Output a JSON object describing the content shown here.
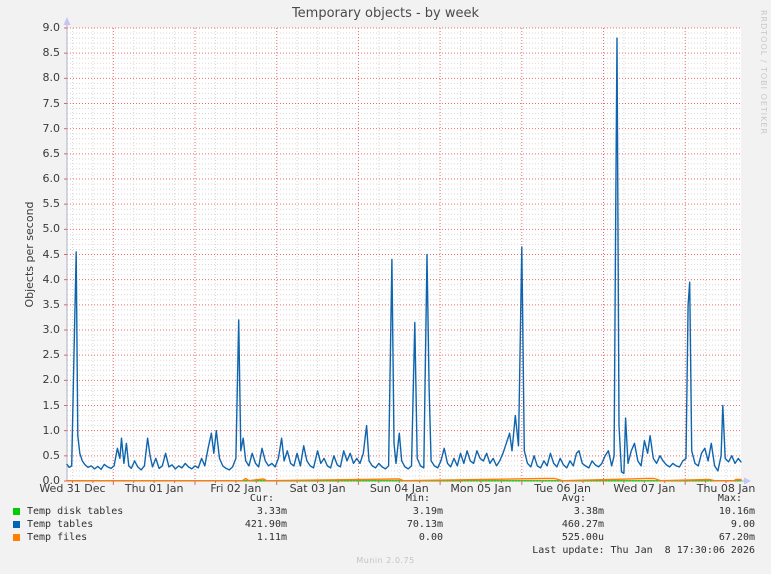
{
  "title": "Temporary objects - by week",
  "watermark": "RRDTOOL / TOBI OETIKER",
  "footer": {
    "munin_version": "Munin 2.0.75"
  },
  "colors": {
    "background": "#f2f2f2",
    "plot_background": "#ffffff",
    "grid_major": "#ee6a6a",
    "grid_minor": "#d8d8d8",
    "axis_line": "#b0b0c8",
    "axis_arrow": "#c3c6f2",
    "tick": "#d46a6a",
    "temp_disk_tables": "#00cc00",
    "temp_tables": "#0e65ae",
    "temp_files": "#ff7f00"
  },
  "chart_data": {
    "type": "line",
    "title": "Temporary objects - by week",
    "xlabel": "",
    "ylabel": "Objects per second",
    "ylim": [
      0,
      9.0
    ],
    "ytick_step": 0.5,
    "grid": {
      "enabled": true,
      "major_color": "#ee6a6a",
      "minor_color": "#d8d8d8"
    },
    "legend_position": "bottom",
    "y_tick_labels": [
      "0.0",
      "0.5",
      "1.0",
      "1.5",
      "2.0",
      "2.5",
      "3.0",
      "3.5",
      "4.0",
      "4.5",
      "5.0",
      "5.5",
      "6.0",
      "6.5",
      "7.0",
      "7.5",
      "8.0",
      "8.5",
      "9.0"
    ],
    "x_tick_labels": [
      "Wed 31 Dec",
      "Thu 01 Jan",
      "Fri 02 Jan",
      "Sat 03 Jan",
      "Sun 04 Jan",
      "Mon 05 Jan",
      "Tue 06 Jan",
      "Wed 07 Jan",
      "Thu 08 Jan"
    ],
    "x_axis": {
      "unit": "days since Wed 31 Dec 00:00",
      "start_day": 0.433,
      "end_day": 8.683,
      "major_grid_days": [
        1,
        2,
        3,
        4,
        5,
        6,
        7,
        8
      ],
      "minor_grid_step_days": 0.25,
      "label_days": [
        0.5,
        1.5,
        2.5,
        3.5,
        4.5,
        5.5,
        6.5,
        7.5,
        8.5
      ]
    },
    "series": [
      {
        "name": "Temp disk tables",
        "color": "#00cc00",
        "points": [
          [
            0.433,
            0.004
          ],
          [
            8.683,
            0.004
          ]
        ]
      },
      {
        "name": "Temp tables",
        "color": "#0e65ae",
        "points": [
          [
            0.433,
            0.33
          ],
          [
            0.46,
            0.27
          ],
          [
            0.49,
            0.3
          ],
          [
            0.515,
            2.25
          ],
          [
            0.545,
            4.55
          ],
          [
            0.565,
            0.9
          ],
          [
            0.59,
            0.55
          ],
          [
            0.62,
            0.4
          ],
          [
            0.65,
            0.33
          ],
          [
            0.69,
            0.27
          ],
          [
            0.73,
            0.3
          ],
          [
            0.77,
            0.24
          ],
          [
            0.81,
            0.29
          ],
          [
            0.85,
            0.23
          ],
          [
            0.89,
            0.33
          ],
          [
            0.93,
            0.28
          ],
          [
            0.97,
            0.25
          ],
          [
            1.01,
            0.3
          ],
          [
            1.05,
            0.65
          ],
          [
            1.08,
            0.45
          ],
          [
            1.1,
            0.85
          ],
          [
            1.13,
            0.35
          ],
          [
            1.16,
            0.75
          ],
          [
            1.19,
            0.3
          ],
          [
            1.22,
            0.25
          ],
          [
            1.26,
            0.4
          ],
          [
            1.3,
            0.28
          ],
          [
            1.34,
            0.22
          ],
          [
            1.38,
            0.3
          ],
          [
            1.42,
            0.85
          ],
          [
            1.45,
            0.5
          ],
          [
            1.48,
            0.28
          ],
          [
            1.52,
            0.45
          ],
          [
            1.56,
            0.25
          ],
          [
            1.6,
            0.3
          ],
          [
            1.64,
            0.55
          ],
          [
            1.68,
            0.28
          ],
          [
            1.72,
            0.32
          ],
          [
            1.76,
            0.24
          ],
          [
            1.8,
            0.3
          ],
          [
            1.84,
            0.26
          ],
          [
            1.88,
            0.35
          ],
          [
            1.92,
            0.28
          ],
          [
            1.96,
            0.24
          ],
          [
            2.0,
            0.3
          ],
          [
            2.04,
            0.26
          ],
          [
            2.08,
            0.45
          ],
          [
            2.12,
            0.3
          ],
          [
            2.16,
            0.65
          ],
          [
            2.2,
            0.95
          ],
          [
            2.23,
            0.55
          ],
          [
            2.26,
            1.0
          ],
          [
            2.3,
            0.45
          ],
          [
            2.34,
            0.3
          ],
          [
            2.38,
            0.25
          ],
          [
            2.42,
            0.22
          ],
          [
            2.46,
            0.28
          ],
          [
            2.5,
            0.45
          ],
          [
            2.535,
            3.2
          ],
          [
            2.56,
            0.6
          ],
          [
            2.59,
            0.85
          ],
          [
            2.62,
            0.4
          ],
          [
            2.66,
            0.3
          ],
          [
            2.7,
            0.55
          ],
          [
            2.74,
            0.35
          ],
          [
            2.78,
            0.28
          ],
          [
            2.82,
            0.65
          ],
          [
            2.86,
            0.4
          ],
          [
            2.9,
            0.3
          ],
          [
            2.94,
            0.35
          ],
          [
            2.98,
            0.28
          ],
          [
            3.02,
            0.45
          ],
          [
            3.06,
            0.85
          ],
          [
            3.09,
            0.4
          ],
          [
            3.13,
            0.6
          ],
          [
            3.17,
            0.35
          ],
          [
            3.21,
            0.3
          ],
          [
            3.25,
            0.55
          ],
          [
            3.29,
            0.3
          ],
          [
            3.33,
            0.7
          ],
          [
            3.37,
            0.4
          ],
          [
            3.41,
            0.3
          ],
          [
            3.45,
            0.26
          ],
          [
            3.5,
            0.6
          ],
          [
            3.54,
            0.35
          ],
          [
            3.58,
            0.45
          ],
          [
            3.62,
            0.3
          ],
          [
            3.66,
            0.26
          ],
          [
            3.7,
            0.5
          ],
          [
            3.74,
            0.32
          ],
          [
            3.78,
            0.28
          ],
          [
            3.82,
            0.6
          ],
          [
            3.86,
            0.4
          ],
          [
            3.9,
            0.55
          ],
          [
            3.94,
            0.35
          ],
          [
            3.98,
            0.45
          ],
          [
            4.02,
            0.35
          ],
          [
            4.06,
            0.55
          ],
          [
            4.1,
            1.1
          ],
          [
            4.13,
            0.4
          ],
          [
            4.17,
            0.3
          ],
          [
            4.21,
            0.26
          ],
          [
            4.25,
            0.35
          ],
          [
            4.29,
            0.28
          ],
          [
            4.33,
            0.24
          ],
          [
            4.37,
            0.3
          ],
          [
            4.41,
            4.4
          ],
          [
            4.435,
            0.75
          ],
          [
            4.46,
            0.35
          ],
          [
            4.5,
            0.95
          ],
          [
            4.53,
            0.4
          ],
          [
            4.57,
            0.28
          ],
          [
            4.61,
            0.24
          ],
          [
            4.65,
            0.3
          ],
          [
            4.69,
            3.15
          ],
          [
            4.72,
            0.45
          ],
          [
            4.76,
            0.3
          ],
          [
            4.8,
            0.26
          ],
          [
            4.84,
            4.5
          ],
          [
            4.865,
            1.85
          ],
          [
            4.89,
            0.4
          ],
          [
            4.93,
            0.3
          ],
          [
            4.97,
            0.26
          ],
          [
            5.01,
            0.4
          ],
          [
            5.05,
            0.65
          ],
          [
            5.09,
            0.35
          ],
          [
            5.13,
            0.28
          ],
          [
            5.17,
            0.45
          ],
          [
            5.21,
            0.3
          ],
          [
            5.25,
            0.55
          ],
          [
            5.29,
            0.35
          ],
          [
            5.33,
            0.6
          ],
          [
            5.37,
            0.4
          ],
          [
            5.41,
            0.35
          ],
          [
            5.45,
            0.6
          ],
          [
            5.49,
            0.45
          ],
          [
            5.53,
            0.4
          ],
          [
            5.57,
            0.55
          ],
          [
            5.61,
            0.35
          ],
          [
            5.65,
            0.45
          ],
          [
            5.69,
            0.3
          ],
          [
            5.73,
            0.4
          ],
          [
            5.77,
            0.55
          ],
          [
            5.81,
            0.75
          ],
          [
            5.85,
            0.95
          ],
          [
            5.88,
            0.6
          ],
          [
            5.92,
            1.3
          ],
          [
            5.96,
            0.7
          ],
          [
            6.0,
            4.65
          ],
          [
            6.03,
            0.6
          ],
          [
            6.07,
            0.35
          ],
          [
            6.11,
            0.28
          ],
          [
            6.15,
            0.5
          ],
          [
            6.19,
            0.3
          ],
          [
            6.23,
            0.26
          ],
          [
            6.27,
            0.4
          ],
          [
            6.31,
            0.3
          ],
          [
            6.35,
            0.55
          ],
          [
            6.39,
            0.35
          ],
          [
            6.43,
            0.28
          ],
          [
            6.47,
            0.45
          ],
          [
            6.51,
            0.32
          ],
          [
            6.55,
            0.26
          ],
          [
            6.59,
            0.4
          ],
          [
            6.63,
            0.3
          ],
          [
            6.67,
            0.55
          ],
          [
            6.7,
            0.6
          ],
          [
            6.74,
            0.35
          ],
          [
            6.78,
            0.3
          ],
          [
            6.82,
            0.26
          ],
          [
            6.86,
            0.4
          ],
          [
            6.9,
            0.32
          ],
          [
            6.94,
            0.28
          ],
          [
            6.98,
            0.35
          ],
          [
            7.02,
            0.5
          ],
          [
            7.06,
            0.6
          ],
          [
            7.1,
            0.3
          ],
          [
            7.13,
            0.5
          ],
          [
            7.15,
            5.6
          ],
          [
            7.165,
            8.8
          ],
          [
            7.19,
            1.1
          ],
          [
            7.22,
            0.18
          ],
          [
            7.25,
            0.15
          ],
          [
            7.27,
            1.25
          ],
          [
            7.3,
            0.35
          ],
          [
            7.34,
            0.6
          ],
          [
            7.38,
            0.75
          ],
          [
            7.42,
            0.4
          ],
          [
            7.46,
            0.3
          ],
          [
            7.5,
            0.8
          ],
          [
            7.54,
            0.55
          ],
          [
            7.57,
            0.9
          ],
          [
            7.61,
            0.45
          ],
          [
            7.65,
            0.35
          ],
          [
            7.69,
            0.5
          ],
          [
            7.73,
            0.4
          ],
          [
            7.77,
            0.32
          ],
          [
            7.81,
            0.28
          ],
          [
            7.85,
            0.35
          ],
          [
            7.89,
            0.3
          ],
          [
            7.93,
            0.28
          ],
          [
            7.97,
            0.4
          ],
          [
            8.01,
            0.45
          ],
          [
            8.035,
            3.5
          ],
          [
            8.055,
            3.95
          ],
          [
            8.08,
            0.6
          ],
          [
            8.12,
            0.35
          ],
          [
            8.16,
            0.3
          ],
          [
            8.2,
            0.55
          ],
          [
            8.24,
            0.65
          ],
          [
            8.28,
            0.4
          ],
          [
            8.32,
            0.75
          ],
          [
            8.36,
            0.3
          ],
          [
            8.4,
            0.2
          ],
          [
            8.44,
            0.5
          ],
          [
            8.46,
            1.5
          ],
          [
            8.49,
            0.45
          ],
          [
            8.53,
            0.38
          ],
          [
            8.57,
            0.5
          ],
          [
            8.61,
            0.35
          ],
          [
            8.65,
            0.45
          ],
          [
            8.683,
            0.38
          ]
        ]
      },
      {
        "name": "Temp files",
        "color": "#ff7f00",
        "points": [
          [
            0.433,
            0.005
          ],
          [
            2.58,
            0.005
          ],
          [
            2.62,
            0.05
          ],
          [
            2.66,
            0.005
          ],
          [
            2.84,
            0.04
          ],
          [
            2.88,
            0.005
          ],
          [
            4.44,
            0.04
          ],
          [
            4.5,
            0.04
          ],
          [
            4.55,
            0.005
          ],
          [
            6.28,
            0.05
          ],
          [
            6.4,
            0.05
          ],
          [
            6.5,
            0.005
          ],
          [
            7.52,
            0.05
          ],
          [
            7.62,
            0.05
          ],
          [
            7.7,
            0.005
          ],
          [
            8.3,
            0.03
          ],
          [
            8.36,
            0.005
          ],
          [
            8.6,
            0.005
          ],
          [
            8.62,
            0.03
          ],
          [
            8.683,
            0.03
          ]
        ]
      }
    ]
  },
  "stats": {
    "columns": [
      "Cur:",
      "Min:",
      "Avg:",
      "Max:"
    ],
    "rows": [
      {
        "name": "Temp disk tables",
        "swatch": "#00cc00",
        "cur": "3.33m",
        "min": "3.19m",
        "avg": "3.38m",
        "max": "10.16m"
      },
      {
        "name": "Temp tables",
        "swatch": "#0066b3",
        "cur": "421.90m",
        "min": "70.13m",
        "avg": "460.27m",
        "max": "9.00"
      },
      {
        "name": "Temp files",
        "swatch": "#ff7f00",
        "cur": "1.11m",
        "min": "0.00",
        "avg": "525.00u",
        "max": "67.20m"
      }
    ],
    "last_update": "Last update: Thu Jan  8 17:30:06 2026"
  }
}
